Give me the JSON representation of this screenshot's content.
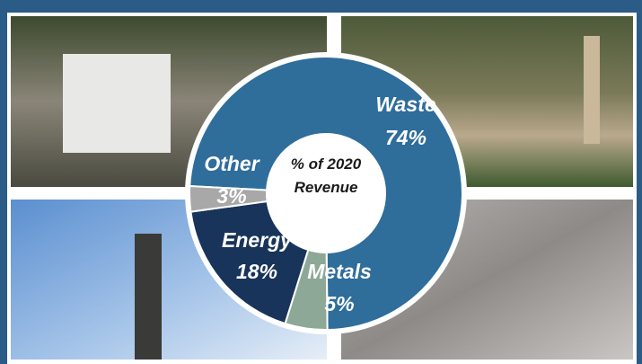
{
  "chart_data": {
    "type": "donut",
    "center_label": "% of 2020 Revenue",
    "categories": [
      "Waste",
      "Metals",
      "Energy",
      "Other"
    ],
    "values": [
      74,
      5,
      18,
      3
    ],
    "value_labels": [
      "74%",
      "5%",
      "18%",
      "3%"
    ],
    "colors": [
      "#2f6d9b",
      "#8ea898",
      "#18345a",
      "#a8a8a8"
    ]
  }
}
